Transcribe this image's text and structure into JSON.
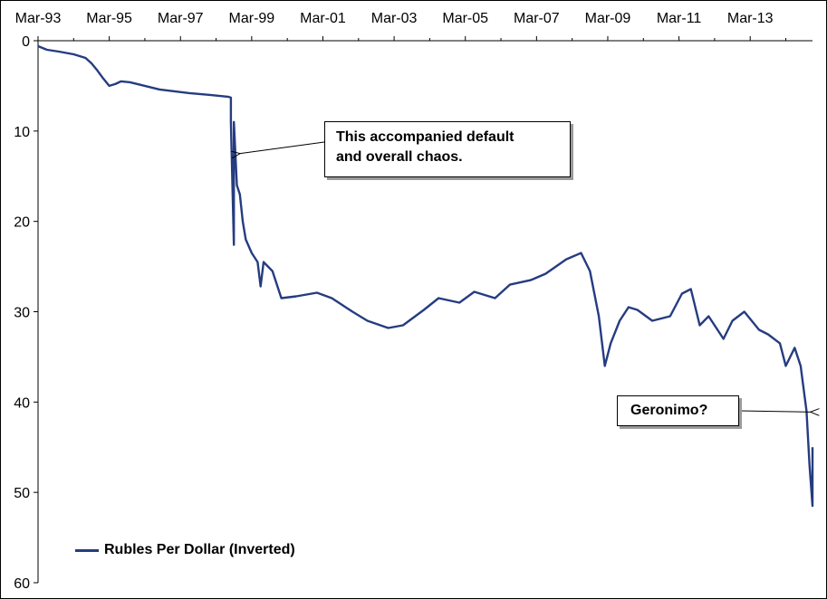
{
  "chart_data": {
    "type": "line",
    "title": "",
    "xlabel": "",
    "ylabel": "",
    "x_tick_labels": [
      "Mar-93",
      "Mar-95",
      "Mar-97",
      "Mar-99",
      "Mar-01",
      "Mar-03",
      "Mar-05",
      "Mar-07",
      "Mar-09",
      "Mar-11",
      "Mar-13"
    ],
    "y_ticks": [
      0,
      10,
      20,
      30,
      40,
      50,
      60
    ],
    "ylim": [
      0,
      60
    ],
    "y_inverted": true,
    "xlim": [
      "1993-03",
      "2014-12"
    ],
    "grid": false,
    "legend_position": "bottom-left",
    "series": [
      {
        "name": "Rubles Per Dollar (Inverted)",
        "color": "#253C80",
        "points": [
          [
            "1993-03",
            0.6
          ],
          [
            "1993-06",
            1.0
          ],
          [
            "1993-10",
            1.2
          ],
          [
            "1994-03",
            1.5
          ],
          [
            "1994-07",
            1.9
          ],
          [
            "1994-09",
            2.5
          ],
          [
            "1994-11",
            3.3
          ],
          [
            "1995-01",
            4.2
          ],
          [
            "1995-03",
            5.0
          ],
          [
            "1995-05",
            4.8
          ],
          [
            "1995-07",
            4.5
          ],
          [
            "1995-10",
            4.6
          ],
          [
            "1996-03",
            5.0
          ],
          [
            "1996-08",
            5.4
          ],
          [
            "1997-01",
            5.6
          ],
          [
            "1997-06",
            5.8
          ],
          [
            "1998-01",
            6.0
          ],
          [
            "1998-07",
            6.2
          ],
          [
            "1998-08",
            6.3
          ],
          [
            "1998-08",
            9.0
          ],
          [
            "1998-09",
            22.6
          ],
          [
            "1998-09",
            9.0
          ],
          [
            "1998-10",
            16.0
          ],
          [
            "1998-11",
            17.0
          ],
          [
            "1998-12",
            20.0
          ],
          [
            "1999-01",
            22.0
          ],
          [
            "1999-03",
            23.5
          ],
          [
            "1999-05",
            24.5
          ],
          [
            "1999-06",
            27.2
          ],
          [
            "1999-07",
            24.5
          ],
          [
            "1999-10",
            25.5
          ],
          [
            "2000-01",
            28.5
          ],
          [
            "2000-06",
            28.3
          ],
          [
            "2001-01",
            27.9
          ],
          [
            "2001-06",
            28.5
          ],
          [
            "2002-01",
            30.0
          ],
          [
            "2002-06",
            31.0
          ],
          [
            "2003-01",
            31.8
          ],
          [
            "2003-06",
            31.5
          ],
          [
            "2004-01",
            29.8
          ],
          [
            "2004-06",
            28.5
          ],
          [
            "2005-01",
            29.0
          ],
          [
            "2005-06",
            27.8
          ],
          [
            "2006-01",
            28.5
          ],
          [
            "2006-06",
            27.0
          ],
          [
            "2007-01",
            26.5
          ],
          [
            "2007-06",
            25.8
          ],
          [
            "2008-01",
            24.2
          ],
          [
            "2008-06",
            23.5
          ],
          [
            "2008-09",
            25.5
          ],
          [
            "2008-12",
            30.5
          ],
          [
            "2009-02",
            36.0
          ],
          [
            "2009-04",
            33.5
          ],
          [
            "2009-07",
            31.0
          ],
          [
            "2009-10",
            29.5
          ],
          [
            "2010-01",
            29.8
          ],
          [
            "2010-06",
            31.0
          ],
          [
            "2010-12",
            30.5
          ],
          [
            "2011-04",
            28.0
          ],
          [
            "2011-07",
            27.5
          ],
          [
            "2011-10",
            31.5
          ],
          [
            "2012-01",
            30.5
          ],
          [
            "2012-06",
            33.0
          ],
          [
            "2012-09",
            31.0
          ],
          [
            "2013-01",
            30.0
          ],
          [
            "2013-06",
            32.0
          ],
          [
            "2013-09",
            32.5
          ],
          [
            "2014-01",
            33.5
          ],
          [
            "2014-03",
            36.0
          ],
          [
            "2014-06",
            34.0
          ],
          [
            "2014-08",
            36.0
          ],
          [
            "2014-10",
            41.0
          ],
          [
            "2014-11",
            47.0
          ],
          [
            "2014-12",
            51.5
          ],
          [
            "2014-12",
            45.0
          ]
        ]
      }
    ],
    "annotations": [
      {
        "line1": "This accompanied default",
        "line2": "and overall chaos.",
        "points_to": [
          "1998-09",
          12.5
        ]
      },
      {
        "line1": "Geronimo?",
        "points_to": [
          "2014-11",
          41.0
        ]
      }
    ]
  }
}
